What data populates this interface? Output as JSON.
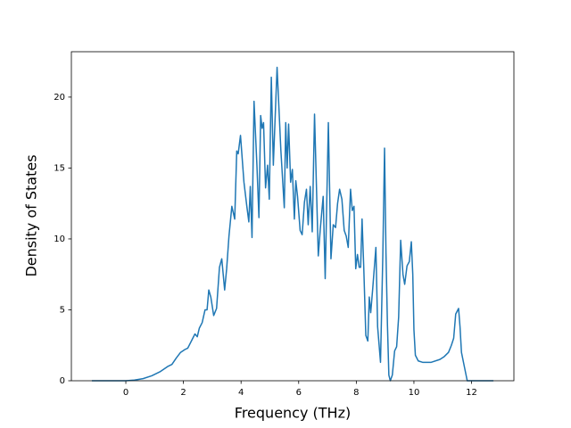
{
  "chart_data": {
    "type": "line",
    "xlabel": "Frequency (THz)",
    "ylabel": "Density of States",
    "xlim": [
      -1.89,
      13.47
    ],
    "ylim": [
      0,
      23.2
    ],
    "xticks": [
      0,
      2,
      4,
      6,
      8,
      10,
      12
    ],
    "yticks": [
      0,
      5,
      10,
      15,
      20
    ],
    "grid": false,
    "series": [
      {
        "color": "#1f77b4",
        "x": [
          -1.18,
          0,
          0.3,
          0.6,
          0.9,
          1.2,
          1.45,
          1.6,
          1.75,
          1.9,
          2.05,
          2.15,
          2.3,
          2.4,
          2.48,
          2.55,
          2.65,
          2.75,
          2.82,
          2.88,
          2.95,
          3.05,
          3.15,
          3.25,
          3.33,
          3.43,
          3.5,
          3.58,
          3.68,
          3.78,
          3.85,
          3.9,
          3.98,
          4.1,
          4.2,
          4.27,
          4.32,
          4.38,
          4.45,
          4.55,
          4.62,
          4.68,
          4.73,
          4.78,
          4.85,
          4.92,
          4.98,
          5.05,
          5.12,
          5.25,
          5.38,
          5.5,
          5.55,
          5.6,
          5.65,
          5.72,
          5.78,
          5.85,
          5.9,
          5.96,
          6.05,
          6.12,
          6.2,
          6.27,
          6.33,
          6.4,
          6.47,
          6.55,
          6.68,
          6.75,
          6.85,
          6.92,
          7.03,
          7.12,
          7.2,
          7.28,
          7.35,
          7.42,
          7.5,
          7.58,
          7.65,
          7.72,
          7.8,
          7.86,
          7.92,
          7.98,
          8.04,
          8.1,
          8.15,
          8.2,
          8.26,
          8.33,
          8.4,
          8.45,
          8.5,
          8.57,
          8.68,
          8.74,
          8.84,
          8.92,
          8.98,
          9.03,
          9.08,
          9.13,
          9.18,
          9.25,
          9.33,
          9.4,
          9.47,
          9.54,
          9.62,
          9.68,
          9.76,
          9.84,
          9.91,
          9.96,
          10.0,
          10.05,
          10.15,
          10.3,
          10.6,
          10.9,
          11.05,
          11.2,
          11.3,
          11.38,
          11.45,
          11.55,
          11.6,
          11.65,
          11.75,
          11.85,
          12.76
        ],
        "values": [
          0,
          0,
          0.05,
          0.15,
          0.35,
          0.65,
          1.0,
          1.15,
          1.6,
          2.0,
          2.2,
          2.3,
          2.9,
          3.3,
          3.1,
          3.7,
          4.1,
          5.0,
          5.0,
          6.4,
          5.9,
          4.6,
          5.1,
          8.0,
          8.6,
          6.4,
          7.9,
          10.2,
          12.3,
          11.4,
          16.2,
          16.0,
          17.3,
          14.0,
          12.3,
          11.2,
          13.7,
          10.1,
          19.7,
          15.2,
          11.5,
          18.7,
          17.8,
          18.2,
          13.6,
          15.2,
          12.8,
          21.4,
          15.2,
          22.1,
          16.3,
          12.2,
          18.2,
          15.0,
          18.1,
          14.0,
          14.9,
          11.4,
          14.1,
          13.0,
          10.6,
          10.3,
          12.6,
          13.5,
          11.0,
          13.7,
          10.5,
          18.8,
          8.8,
          10.7,
          13.0,
          7.2,
          18.2,
          8.6,
          11.0,
          10.8,
          12.5,
          13.5,
          12.8,
          10.6,
          10.2,
          9.4,
          13.5,
          12.0,
          12.3,
          7.9,
          8.9,
          8.0,
          8.0,
          11.4,
          7.9,
          3.2,
          2.8,
          5.9,
          4.8,
          6.5,
          9.4,
          3.8,
          1.3,
          8.8,
          16.4,
          9.0,
          4.0,
          0.4,
          0,
          0.4,
          2.1,
          2.4,
          4.5,
          9.9,
          7.5,
          6.8,
          8.1,
          8.4,
          9.8,
          7.5,
          3.6,
          1.8,
          1.4,
          1.3,
          1.3,
          1.5,
          1.7,
          2.0,
          2.5,
          3.0,
          4.7,
          5.1,
          3.8,
          2.0,
          1.0,
          0,
          0
        ]
      }
    ]
  }
}
